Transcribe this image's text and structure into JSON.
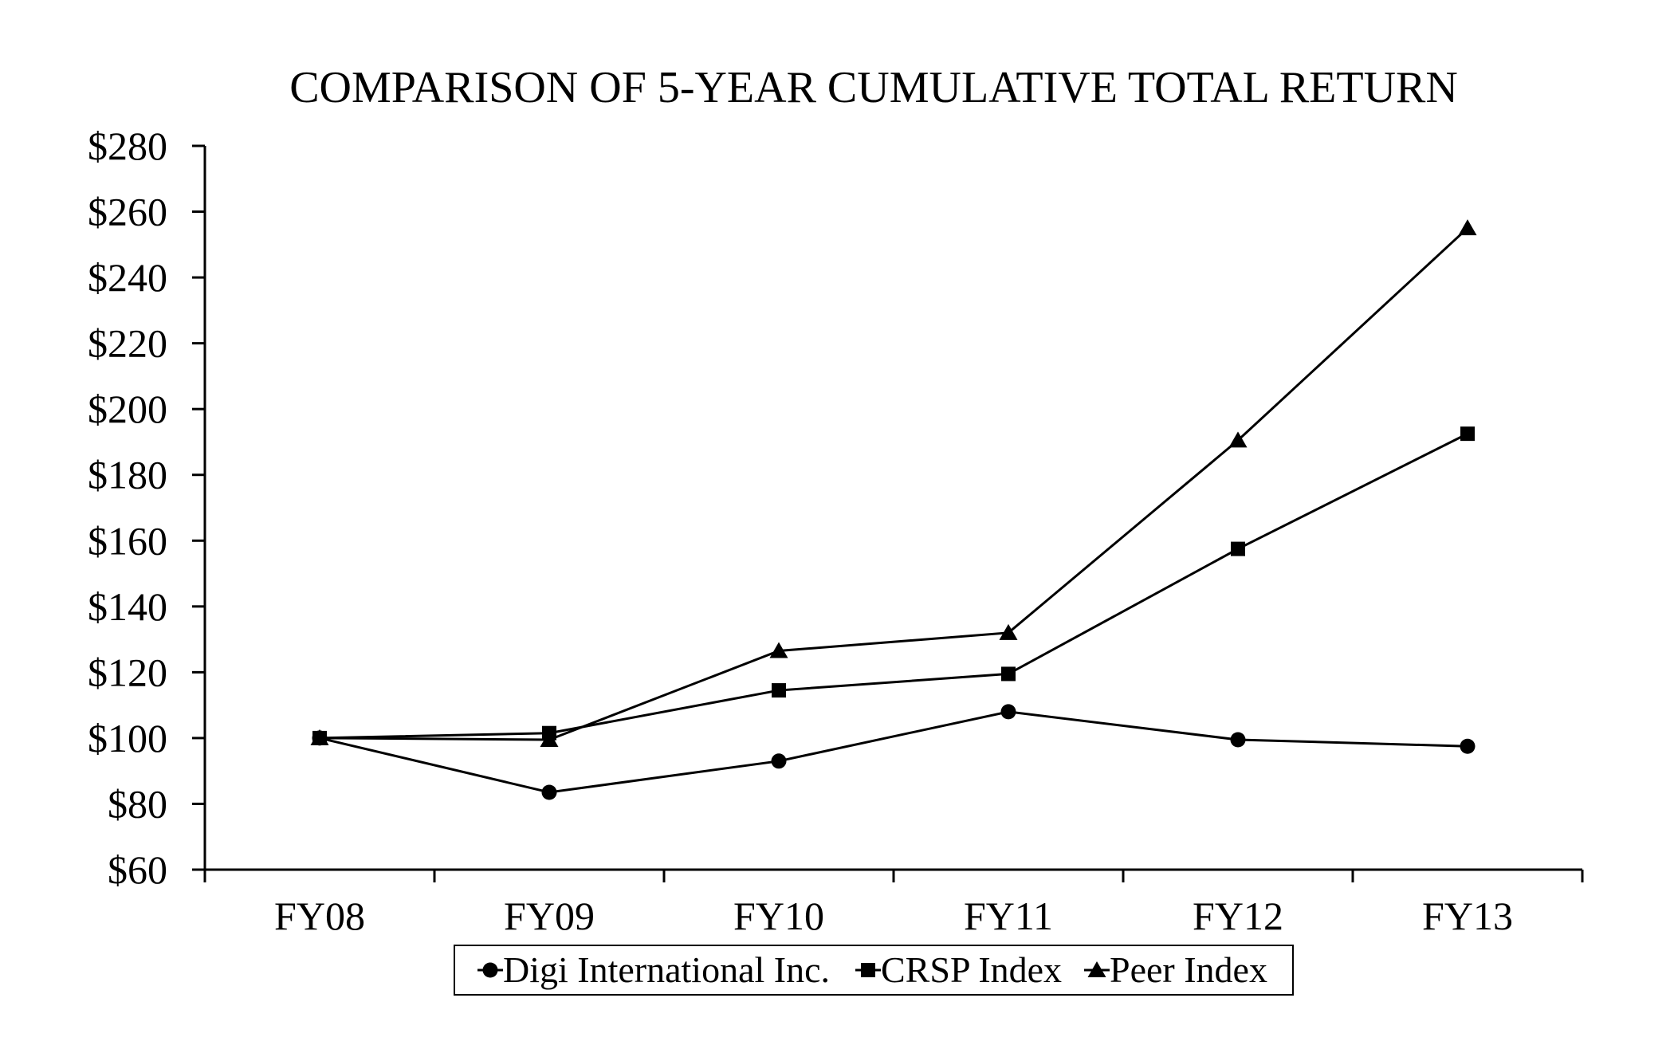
{
  "chart_data": {
    "type": "line",
    "title": "COMPARISON OF 5-YEAR CUMULATIVE TOTAL RETURN",
    "categories": [
      "FY08",
      "FY09",
      "FY10",
      "FY11",
      "FY12",
      "FY13"
    ],
    "series": [
      {
        "name": "Digi International Inc.",
        "marker": "circle",
        "values": [
          100,
          83.5,
          93,
          108,
          99.5,
          97.5
        ]
      },
      {
        "name": "CRSP Index",
        "marker": "square",
        "values": [
          100,
          101.5,
          114.5,
          119.5,
          157.5,
          192.5
        ]
      },
      {
        "name": "Peer Index",
        "marker": "triangle",
        "values": [
          100,
          99.5,
          126.5,
          132,
          190.5,
          255
        ]
      }
    ],
    "ylim": [
      60,
      280
    ],
    "ytick_step": 20,
    "ytick_labels": [
      "$60",
      "$80",
      "$100",
      "$120",
      "$140",
      "$160",
      "$180",
      "$200",
      "$220",
      "$240",
      "$260",
      "$280"
    ],
    "xlabel": "",
    "ylabel": "",
    "grid": false,
    "legend_position": "bottom",
    "line_color": "#000000",
    "background_color": "#ffffff"
  }
}
